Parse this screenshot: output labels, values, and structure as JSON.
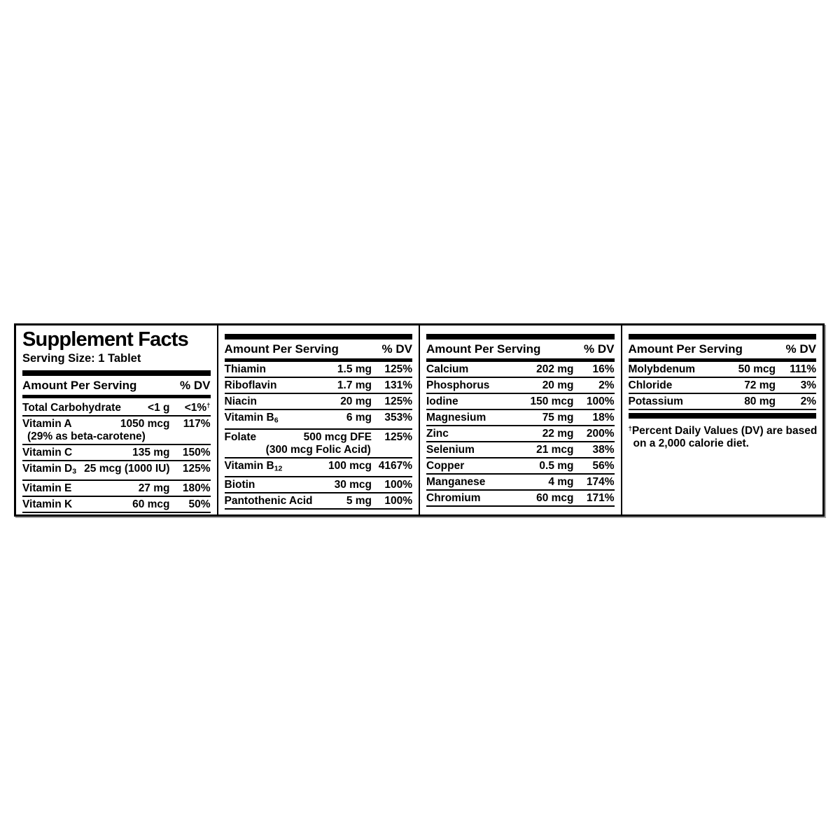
{
  "label": {
    "title": "Supplement Facts",
    "serving_size": "Serving Size: 1 Tablet",
    "header": {
      "amount_label": "Amount Per Serving",
      "dv_label": "% DV"
    },
    "footnote": {
      "dagger": "†",
      "line1": "Percent Daily Values (DV) are based",
      "line2": "on a 2,000 calorie diet."
    },
    "colors": {
      "ink": "#000000",
      "paper": "#ffffff"
    }
  },
  "columns": [
    {
      "rows": [
        {
          "name": "Total Carbohydrate",
          "amount": "<1 g",
          "dv": "<1%",
          "dv_sup": "†"
        },
        {
          "name": "Vitamin A",
          "amount": "1050 mcg",
          "dv": "117%",
          "note": "(29% as beta-carotene)",
          "note_align": "left"
        },
        {
          "name": "Vitamin C",
          "amount": "135 mg",
          "dv": "150%"
        },
        {
          "name": "Vitamin D",
          "name_sub": "3",
          "amount": "25 mcg (1000 IU)",
          "dv": "125%"
        },
        {
          "name": "Vitamin E",
          "amount": "27 mg",
          "dv": "180%"
        },
        {
          "name": "Vitamin K",
          "amount": "60 mcg",
          "dv": "50%"
        }
      ]
    },
    {
      "rows": [
        {
          "name": "Thiamin",
          "amount": "1.5 mg",
          "dv": "125%"
        },
        {
          "name": "Riboflavin",
          "amount": "1.7 mg",
          "dv": "131%"
        },
        {
          "name": "Niacin",
          "amount": "20 mg",
          "dv": "125%"
        },
        {
          "name": "Vitamin B",
          "name_sub": "6",
          "amount": "6 mg",
          "dv": "353%"
        },
        {
          "name": "Folate",
          "amount": "500 mcg DFE",
          "dv": "125%",
          "note": "(300 mcg Folic Acid)",
          "note_align": "center"
        },
        {
          "name": "Vitamin B",
          "name_sub": "12",
          "amount": "100 mcg",
          "dv": "4167%"
        },
        {
          "name": "Biotin",
          "amount": "30 mcg",
          "dv": "100%"
        },
        {
          "name": "Pantothenic Acid",
          "amount": "5 mg",
          "dv": "100%"
        }
      ]
    },
    {
      "rows": [
        {
          "name": "Calcium",
          "amount": "202 mg",
          "dv": "16%"
        },
        {
          "name": "Phosphorus",
          "amount": "20 mg",
          "dv": "2%"
        },
        {
          "name": "Iodine",
          "amount": "150 mcg",
          "dv": "100%"
        },
        {
          "name": "Magnesium",
          "amount": "75 mg",
          "dv": "18%"
        },
        {
          "name": "Zinc",
          "amount": "22 mg",
          "dv": "200%"
        },
        {
          "name": "Selenium",
          "amount": "21 mcg",
          "dv": "38%"
        },
        {
          "name": "Copper",
          "amount": "0.5 mg",
          "dv": "56%"
        },
        {
          "name": "Manganese",
          "amount": "4 mg",
          "dv": "174%"
        },
        {
          "name": "Chromium",
          "amount": "60 mcg",
          "dv": "171%"
        }
      ]
    },
    {
      "rows": [
        {
          "name": "Molybdenum",
          "amount": "50 mcg",
          "dv": "111%"
        },
        {
          "name": "Chloride",
          "amount": "72 mg",
          "dv": "3%"
        },
        {
          "name": "Potassium",
          "amount": "80 mg",
          "dv": "2%"
        }
      ]
    }
  ]
}
